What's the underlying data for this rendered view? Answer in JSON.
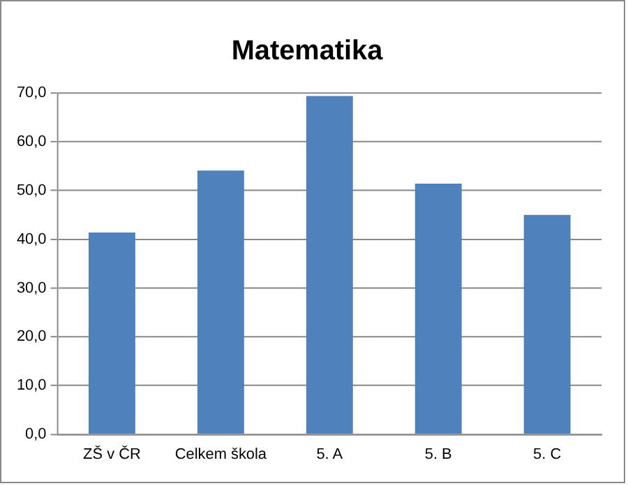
{
  "chart_data": {
    "type": "bar",
    "title": "Matematika",
    "categories": [
      "ZŠ v ČR",
      "Celkem škola",
      "5. A",
      "5. B",
      "5. C"
    ],
    "values": [
      41.4,
      54.1,
      69.4,
      51.4,
      45.0
    ],
    "color": "#4f81bd",
    "ylim": [
      0,
      70
    ],
    "yticks": [
      {
        "value": 0,
        "label": "0,0"
      },
      {
        "value": 10,
        "label": "10,0"
      },
      {
        "value": 20,
        "label": "20,0"
      },
      {
        "value": 30,
        "label": "30,0"
      },
      {
        "value": 40,
        "label": "40,0"
      },
      {
        "value": 50,
        "label": "50,0"
      },
      {
        "value": 60,
        "label": "60,0"
      },
      {
        "value": 70,
        "label": "70,0"
      }
    ],
    "grid": "y",
    "legend": false
  }
}
